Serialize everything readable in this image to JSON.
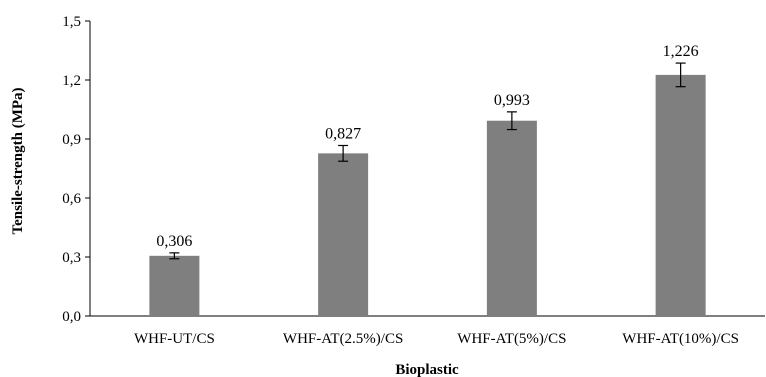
{
  "chart_data": {
    "type": "bar",
    "title": "",
    "xlabel": "Bioplastic",
    "ylabel": "Tensile-strength (MPa)",
    "categories": [
      "WHF-UT/CS",
      "WHF-AT(2.5%)/CS",
      "WHF-AT(5%)/CS",
      "WHF-AT(10%)/CS"
    ],
    "values": [
      0.306,
      0.827,
      0.993,
      1.226
    ],
    "value_labels": [
      "0,306",
      "0,827",
      "0,993",
      "1,226"
    ],
    "error": [
      0.015,
      0.04,
      0.045,
      0.06
    ],
    "ylim": [
      0,
      1.5
    ],
    "yticks": [
      0,
      0.3,
      0.6,
      0.9,
      1.2,
      1.5
    ],
    "ytick_labels": [
      "0,0",
      "0,3",
      "0,6",
      "0,9",
      "1,2",
      "1,5"
    ],
    "grid": false,
    "bar_color": "#7f7f7f"
  }
}
